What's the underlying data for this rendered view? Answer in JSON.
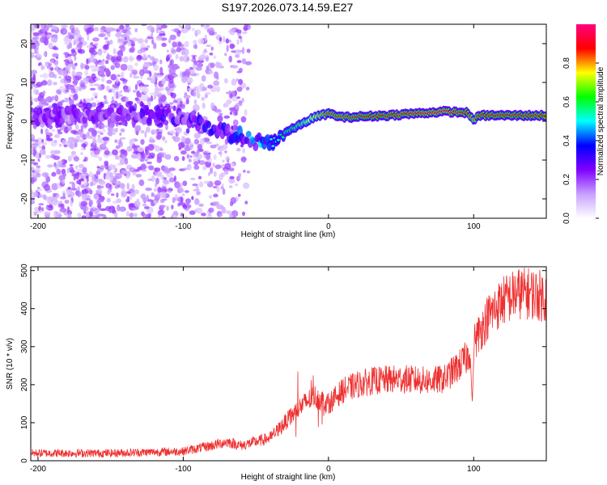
{
  "title": "S197.2026.073.14.59.E27",
  "chart_data": [
    {
      "type": "heatmap",
      "xlabel": "Height of straight line (km)",
      "ylabel": "Frequency (Hz)",
      "xlim": [
        -205,
        150
      ],
      "ylim": [
        -25,
        25
      ],
      "xticks": [
        -200,
        -100,
        0,
        100
      ],
      "yticks": [
        20,
        10,
        0,
        -10,
        -20
      ],
      "colorbar": {
        "label": "Normalized spectral amplitude",
        "range": [
          0,
          1
        ],
        "ticks": [
          "0.0",
          "0.2",
          "0.4",
          "0.6",
          "0.8"
        ],
        "colors": [
          "#ffffff",
          "#c8a0ff",
          "#8000ff",
          "#0000ff",
          "#00ffff",
          "#00ff00",
          "#ffff00",
          "#ff0000",
          "#ff0080"
        ]
      },
      "ridge": {
        "x": [
          -205,
          -150,
          -100,
          -80,
          -60,
          -45,
          -38,
          -30,
          -20,
          -10,
          0,
          10,
          40,
          80,
          95,
          100,
          105,
          150
        ],
        "freq": [
          1,
          2,
          1,
          -2,
          -4,
          -6,
          -5,
          -3,
          -1,
          1,
          2,
          1,
          1.5,
          2.5,
          2.2,
          0.5,
          1.5,
          1.5
        ],
        "amplitude": [
          0.25,
          0.25,
          0.3,
          0.35,
          0.4,
          0.45,
          0.5,
          0.6,
          0.65,
          0.75,
          0.85,
          0.85,
          0.9,
          0.95,
          0.9,
          0.8,
          0.9,
          0.9
        ]
      }
    },
    {
      "type": "line",
      "xlabel": "Height of straight line (km)",
      "ylabel": "SNR (10 * v/v)",
      "xlim": [
        -205,
        150
      ],
      "ylim": [
        0,
        510
      ],
      "xticks": [
        -200,
        -100,
        0,
        100
      ],
      "yticks": [
        0,
        100,
        200,
        300,
        400,
        500
      ],
      "color": "#ee3030",
      "trend": {
        "x": [
          -205,
          -150,
          -100,
          -80,
          -70,
          -60,
          -40,
          -30,
          -20,
          -10,
          0,
          10,
          20,
          30,
          50,
          70,
          80,
          90,
          95,
          100,
          110,
          120,
          130,
          140,
          150
        ],
        "y": [
          20,
          20,
          25,
          40,
          50,
          40,
          60,
          100,
          140,
          170,
          150,
          185,
          200,
          210,
          215,
          210,
          215,
          250,
          270,
          310,
          380,
          420,
          440,
          440,
          430
        ]
      }
    }
  ]
}
